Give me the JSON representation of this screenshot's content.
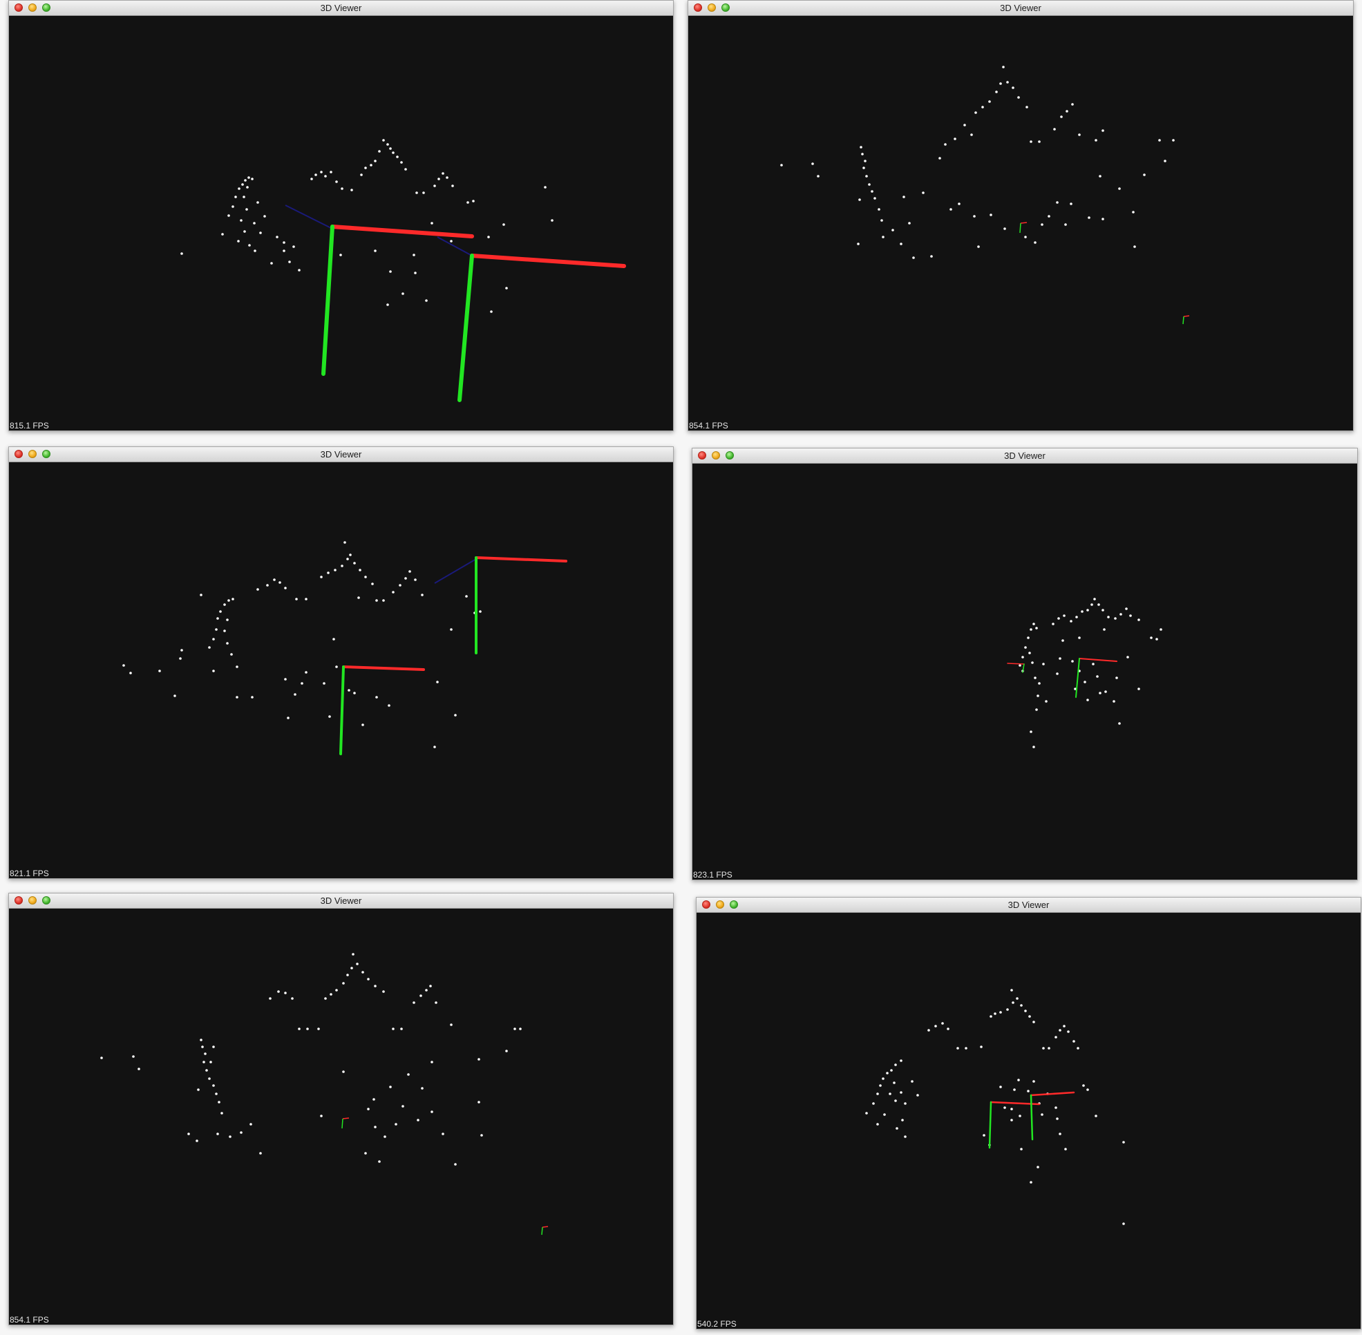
{
  "windows": [
    {
      "title": "3D Viewer",
      "fps": "815.1 FPS"
    },
    {
      "title": "3D Viewer",
      "fps": "854.1 FPS"
    },
    {
      "title": "3D Viewer",
      "fps": "821.1 FPS"
    },
    {
      "title": "3D Viewer",
      "fps": "823.1 FPS"
    },
    {
      "title": "3D Viewer",
      "fps": "854.1 FPS"
    },
    {
      "title": "3D Viewer",
      "fps": "540.2 FPS"
    }
  ],
  "colors": {
    "viewport_background": "#121212",
    "point": "#ffffff",
    "x_axis": "#ff2a2a",
    "y_axis": "#22e622",
    "z_axis": "#1a1a7a"
  },
  "icons": {
    "close": "close-icon",
    "minimize": "minimize-icon",
    "zoom": "zoom-icon"
  }
}
